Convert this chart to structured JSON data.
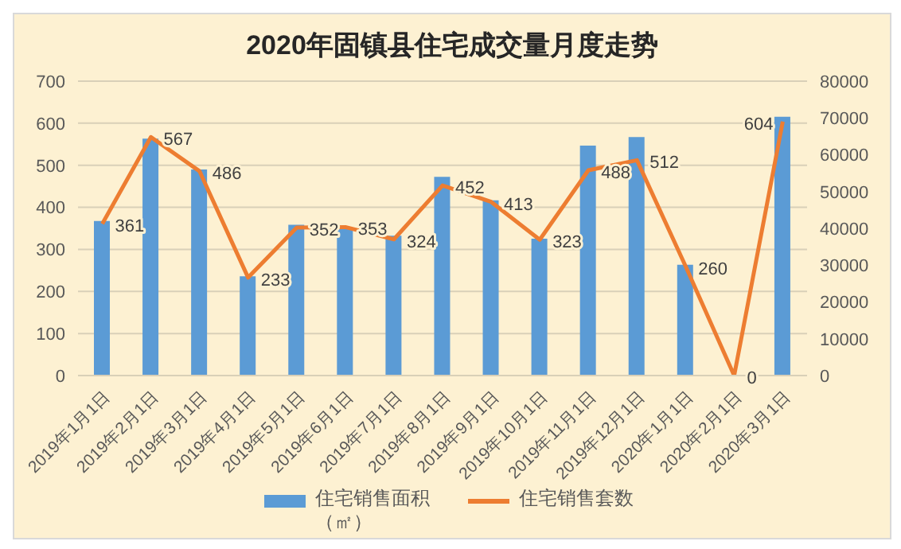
{
  "chart_data": {
    "type": "bar",
    "title": "2020年固镇县住宅成交量月度走势",
    "categories": [
      "2019年1月1日",
      "2019年2月1日",
      "2019年3月1日",
      "2019年4月1日",
      "2019年5月1日",
      "2019年6月1日",
      "2019年7月1日",
      "2019年8月1日",
      "2019年9月1日",
      "2019年10月1日",
      "2019年11月1日",
      "2019年12月1日",
      "2020年1月1日",
      "2020年2月1日",
      "2020年3月1日"
    ],
    "series": [
      {
        "name": "住宅销售面积（㎡）",
        "axis": "y2",
        "color": "#5b9bd5",
        "values": [
          42000,
          64400,
          56000,
          27000,
          41000,
          40000,
          38000,
          54000,
          47600,
          37200,
          62500,
          64800,
          30100,
          0,
          70300
        ]
      },
      {
        "name": "住宅销售套数",
        "type": "line",
        "color": "#ed7d31",
        "values": [
          361,
          567,
          486,
          233,
          352,
          353,
          324,
          452,
          413,
          323,
          488,
          512,
          260,
          0,
          604
        ],
        "value_labels": [
          "361",
          "567",
          "486",
          "233",
          "352",
          "353",
          "324",
          "452",
          "413",
          "323",
          "488",
          "512",
          "260",
          "0",
          "604"
        ]
      }
    ],
    "ylim": [
      0,
      700
    ],
    "yticks": [
      0,
      100,
      200,
      300,
      400,
      500,
      600,
      700
    ],
    "y2lim": [
      0,
      80000
    ],
    "y2ticks": [
      0,
      10000,
      20000,
      30000,
      40000,
      50000,
      60000,
      70000,
      80000
    ],
    "grid": "y",
    "legend": "bottom",
    "marker": "none"
  }
}
